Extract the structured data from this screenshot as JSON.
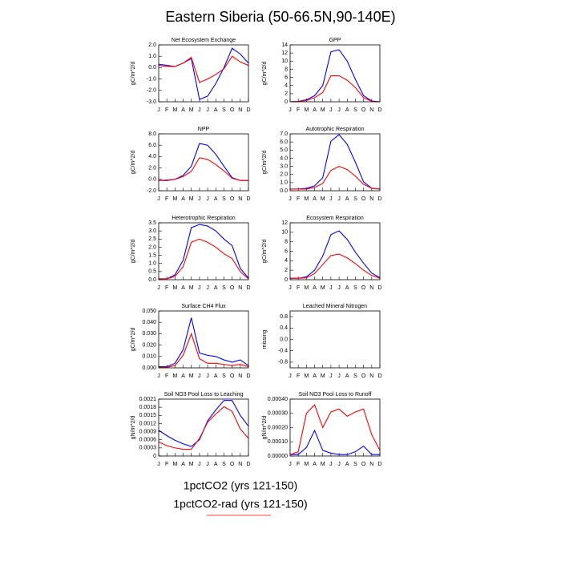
{
  "title": "Eastern Siberia (50-66.5N,90-140E)",
  "legend": [
    {
      "name": "1pctCO2 (yrs 121-150)",
      "color": "#0000ff"
    },
    {
      "name": "1pctCO2-rad (yrs 121-150)",
      "color": "#ff0000"
    }
  ],
  "chart_data": [
    {
      "type": "line",
      "title": "Net Ecosystem Exchange",
      "ylabel": "gC/m^2/d",
      "categories": [
        "J",
        "F",
        "M",
        "A",
        "M",
        "J",
        "J",
        "A",
        "S",
        "O",
        "N",
        "D"
      ],
      "ylim": [
        -3,
        2
      ],
      "yticks": [
        {
          "value": -3,
          "label": "-3.0"
        },
        {
          "value": -2,
          "label": "-2.0"
        },
        {
          "value": -1,
          "label": "-1.0"
        },
        {
          "value": 0,
          "label": "0.0"
        },
        {
          "value": 1,
          "label": "1.0"
        },
        {
          "value": 2,
          "label": "2.0"
        }
      ],
      "series": [
        {
          "values": [
            0.3,
            0.2,
            0.1,
            0.4,
            0.8,
            -2.8,
            -2.5,
            -1.4,
            0,
            1.7,
            1.2,
            0.4
          ]
        },
        {
          "values": [
            0.2,
            0.1,
            0.1,
            0.4,
            0.9,
            -1.3,
            -1.0,
            -0.6,
            -0.1,
            1.0,
            0.5,
            0.2
          ]
        }
      ]
    },
    {
      "type": "line",
      "title": "GPP",
      "ylabel": "gC/m^2/d",
      "categories": [
        "J",
        "F",
        "M",
        "A",
        "M",
        "J",
        "J",
        "A",
        "S",
        "O",
        "N",
        "D"
      ],
      "ylim": [
        0,
        14
      ],
      "yticks": [
        0,
        2,
        4,
        6,
        8,
        10,
        12,
        14
      ],
      "series": [
        {
          "values": [
            0,
            0.1,
            0.5,
            1.5,
            4,
            12.3,
            12.8,
            10,
            5.5,
            1.5,
            0.2,
            0
          ]
        },
        {
          "values": [
            0,
            0.1,
            0.3,
            1,
            2.3,
            6.4,
            6.4,
            5.3,
            3.5,
            1,
            0.1,
            0
          ]
        }
      ]
    },
    {
      "type": "line",
      "title": "NPP",
      "ylabel": "gC/m^2/d",
      "categories": [
        "J",
        "F",
        "M",
        "A",
        "M",
        "J",
        "J",
        "A",
        "S",
        "O",
        "N",
        "D"
      ],
      "ylim": [
        -2,
        8
      ],
      "yticks": [
        {
          "value": -2,
          "label": "-2.0"
        },
        {
          "value": 0,
          "label": "0.0"
        },
        {
          "value": 2,
          "label": "2.0"
        },
        {
          "value": 4,
          "label": "4.0"
        },
        {
          "value": 6,
          "label": "6.0"
        },
        {
          "value": 8,
          "label": "8.0"
        }
      ],
      "series": [
        {
          "values": [
            -0.2,
            -0.2,
            0,
            0.7,
            2.3,
            6.3,
            6,
            4.4,
            2.3,
            0.3,
            -0.2,
            -0.2
          ]
        },
        {
          "values": [
            -0.2,
            -0.1,
            0,
            0.5,
            1.4,
            3.8,
            3.5,
            2.6,
            1.5,
            0.2,
            -0.2,
            -0.2
          ]
        }
      ]
    },
    {
      "type": "line",
      "title": "Autotrophic Respiration",
      "ylabel": "gC/m^2/d",
      "categories": [
        "J",
        "F",
        "M",
        "A",
        "M",
        "J",
        "J",
        "A",
        "S",
        "O",
        "N",
        "D"
      ],
      "ylim": [
        0,
        7
      ],
      "yticks": [
        {
          "value": 0,
          "label": "0.0"
        },
        {
          "value": 1,
          "label": "1.0"
        },
        {
          "value": 2,
          "label": "2.0"
        },
        {
          "value": 3,
          "label": "3.0"
        },
        {
          "value": 4,
          "label": "4.0"
        },
        {
          "value": 5,
          "label": "5.0"
        },
        {
          "value": 6,
          "label": "6.0"
        },
        {
          "value": 7,
          "label": "7.0"
        }
      ],
      "series": [
        {
          "values": [
            0.2,
            0.2,
            0.3,
            0.6,
            1.6,
            6.1,
            6.9,
            5.7,
            3.5,
            1.1,
            0.3,
            0.2
          ]
        },
        {
          "values": [
            0.2,
            0.2,
            0.2,
            0.4,
            0.9,
            2.5,
            3.0,
            2.6,
            1.8,
            0.8,
            0.3,
            0.2
          ]
        }
      ]
    },
    {
      "type": "line",
      "title": "Heterotrophic Respiration",
      "ylabel": "gC/m^2/d",
      "categories": [
        "J",
        "F",
        "M",
        "A",
        "M",
        "J",
        "J",
        "A",
        "S",
        "O",
        "N",
        "D"
      ],
      "ylim": [
        0,
        3.5
      ],
      "yticks": [
        {
          "value": 0,
          "label": "0.0"
        },
        0.5,
        {
          "value": 1,
          "label": "1.0"
        },
        1.5,
        {
          "value": 2,
          "label": "2.0"
        },
        2.5,
        {
          "value": 3,
          "label": "3.0"
        },
        3.5
      ],
      "series": [
        {
          "values": [
            0.05,
            0.05,
            0.3,
            1.2,
            3.2,
            3.4,
            3.3,
            3.0,
            2.5,
            2.1,
            0.7,
            0.1
          ]
        },
        {
          "values": [
            0.05,
            0.05,
            0.2,
            0.8,
            2.3,
            2.5,
            2.3,
            2.0,
            1.6,
            1.3,
            0.5,
            0.05
          ]
        }
      ]
    },
    {
      "type": "line",
      "title": "Ecosystem Respiration",
      "ylabel": "gC/m^2/d",
      "categories": [
        "J",
        "F",
        "M",
        "A",
        "M",
        "J",
        "J",
        "A",
        "S",
        "O",
        "N",
        "D"
      ],
      "ylim": [
        0,
        12
      ],
      "yticks": [
        0,
        2,
        4,
        6,
        8,
        10,
        12
      ],
      "series": [
        {
          "values": [
            0.3,
            0.3,
            0.6,
            2,
            5,
            9.5,
            10.3,
            8.5,
            5.8,
            3.5,
            1.4,
            0.4
          ]
        },
        {
          "values": [
            0.3,
            0.3,
            0.4,
            1.3,
            3.2,
            5.1,
            5.4,
            4.6,
            3.4,
            2,
            0.9,
            0.3
          ]
        }
      ]
    },
    {
      "type": "line",
      "title": "Surface CH4 Flux",
      "ylabel": "gC/m^2/d",
      "categories": [
        "J",
        "F",
        "M",
        "A",
        "M",
        "J",
        "J",
        "A",
        "S",
        "O",
        "N",
        "D"
      ],
      "ylim": [
        0,
        0.05
      ],
      "yticks": [
        {
          "value": 0,
          "label": "0.000"
        },
        {
          "value": 0.01,
          "label": "0.010"
        },
        {
          "value": 0.02,
          "label": "0.020"
        },
        {
          "value": 0.03,
          "label": "0.030"
        },
        {
          "value": 0.04,
          "label": "0.040"
        },
        {
          "value": 0.05,
          "label": "0.050"
        }
      ],
      "series": [
        {
          "values": [
            0.001,
            0.001,
            0.004,
            0.016,
            0.044,
            0.013,
            0.011,
            0.01,
            0.007,
            0.005,
            0.007,
            0.002
          ]
        },
        {
          "values": [
            0.0005,
            0.0005,
            0.002,
            0.011,
            0.03,
            0.008,
            0.004,
            0.004,
            0.003,
            0.002,
            0.003,
            0.001
          ]
        }
      ]
    },
    {
      "type": "line",
      "title": "Leached Mineral Nitrogen",
      "ylabel": "missing",
      "categories": [
        "J",
        "F",
        "M",
        "A",
        "M",
        "J",
        "J",
        "A",
        "S",
        "O",
        "N",
        "D"
      ],
      "ylim": [
        -1,
        1
      ],
      "yticks": [
        -0.8,
        -0.4,
        {
          "value": 0,
          "label": "0.0"
        },
        0.4,
        0.8
      ],
      "series": []
    },
    {
      "type": "line",
      "title": "Soil NO3 Pool Loss to Leaching",
      "ylabel": "gN/m^2/d",
      "categories": [
        "J",
        "F",
        "M",
        "A",
        "M",
        "J",
        "J",
        "A",
        "S",
        "O",
        "N",
        "D"
      ],
      "ylim": [
        0,
        0.0021
      ],
      "yticks": [
        0,
        0.0003,
        0.0006,
        0.0009,
        0.0012,
        0.0015,
        0.0018,
        0.0021
      ],
      "series": [
        {
          "values": [
            0.00095,
            0.00075,
            0.00058,
            0.00045,
            0.00035,
            0.0006,
            0.0013,
            0.0017,
            0.00205,
            0.00205,
            0.0015,
            0.0011
          ]
        },
        {
          "values": [
            0.00052,
            0.00038,
            0.0003,
            0.00025,
            0.00025,
            0.00065,
            0.00125,
            0.00155,
            0.00182,
            0.00165,
            0.001,
            0.00065
          ]
        }
      ]
    },
    {
      "type": "line",
      "title": "Soil NO3 Pool Loss to Runoff",
      "ylabel": "gN/m^2/d",
      "categories": [
        "J",
        "F",
        "M",
        "A",
        "M",
        "J",
        "J",
        "A",
        "S",
        "O",
        "N",
        "D"
      ],
      "ylim": [
        0,
        0.0004
      ],
      "yticks": [
        {
          "value": 0,
          "label": "0.00000"
        },
        {
          "value": 0.0001,
          "label": "0.00010"
        },
        {
          "value": 0.0002,
          "label": "0.00020"
        },
        {
          "value": 0.0003,
          "label": "0.00030"
        },
        {
          "value": 0.0004,
          "label": "0.00040"
        }
      ],
      "series": [
        {
          "values": [
            1e-05,
            1e-05,
            6e-05,
            0.00018,
            4e-05,
            2e-05,
            1e-05,
            1e-05,
            3e-05,
            7e-05,
            1e-05,
            1e-05
          ]
        },
        {
          "values": [
            1e-05,
            3e-05,
            0.0003,
            0.00036,
            0.0002,
            0.00031,
            0.00033,
            0.00028,
            0.00031,
            0.00033,
            0.00015,
            4e-05
          ]
        }
      ]
    }
  ]
}
